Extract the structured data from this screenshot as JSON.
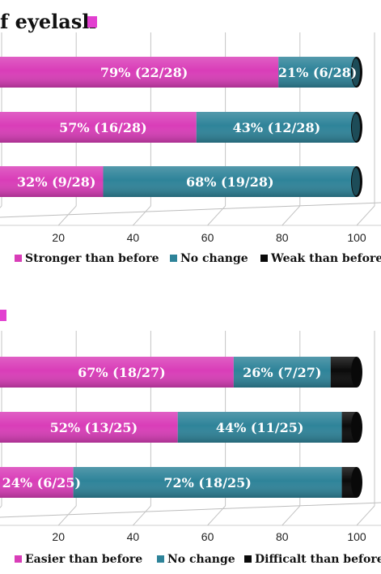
{
  "chart_data": [
    {
      "type": "bar",
      "orientation": "horizontal",
      "stacked": true,
      "title": "f eyelash",
      "xlim": [
        0,
        100
      ],
      "x_ticks": [
        20,
        40,
        60,
        80,
        100
      ],
      "grid": true,
      "legend_position": "bottom",
      "bars": [
        {
          "values": [
            79,
            21,
            0
          ],
          "labels": [
            "79% (22/28)",
            "21% (6/28)",
            ""
          ]
        },
        {
          "values": [
            57,
            43,
            0
          ],
          "labels": [
            "57% (16/28)",
            "43% (12/28)",
            ""
          ]
        },
        {
          "values": [
            32,
            68,
            0
          ],
          "labels": [
            "32% (9/28)",
            "68% (19/28)",
            ""
          ]
        }
      ],
      "series": [
        {
          "name": "Stronger than before",
          "color": "#d93db8"
        },
        {
          "name": "No change",
          "color": "#2e8399"
        },
        {
          "name": "Weak than before",
          "color": "#0a0a0a"
        }
      ]
    },
    {
      "type": "bar",
      "orientation": "horizontal",
      "stacked": true,
      "title": "",
      "xlim": [
        0,
        100
      ],
      "x_ticks": [
        20,
        40,
        60,
        80,
        100
      ],
      "grid": true,
      "legend_position": "bottom",
      "bars": [
        {
          "values": [
            67,
            26,
            7
          ],
          "labels": [
            "67% (18/27)",
            "26% (7/27)",
            ""
          ]
        },
        {
          "values": [
            52,
            44,
            4
          ],
          "labels": [
            "52% (13/25)",
            "44% (11/25)",
            ""
          ]
        },
        {
          "values": [
            24,
            72,
            4
          ],
          "labels": [
            "24% (6/25)",
            "72% (18/25)",
            ""
          ]
        }
      ],
      "series": [
        {
          "name": "Easier than before",
          "color": "#d93db8"
        },
        {
          "name": "No change",
          "color": "#2e8399"
        },
        {
          "name": "Difficalt than before",
          "color": "#0a0a0a"
        }
      ]
    }
  ]
}
